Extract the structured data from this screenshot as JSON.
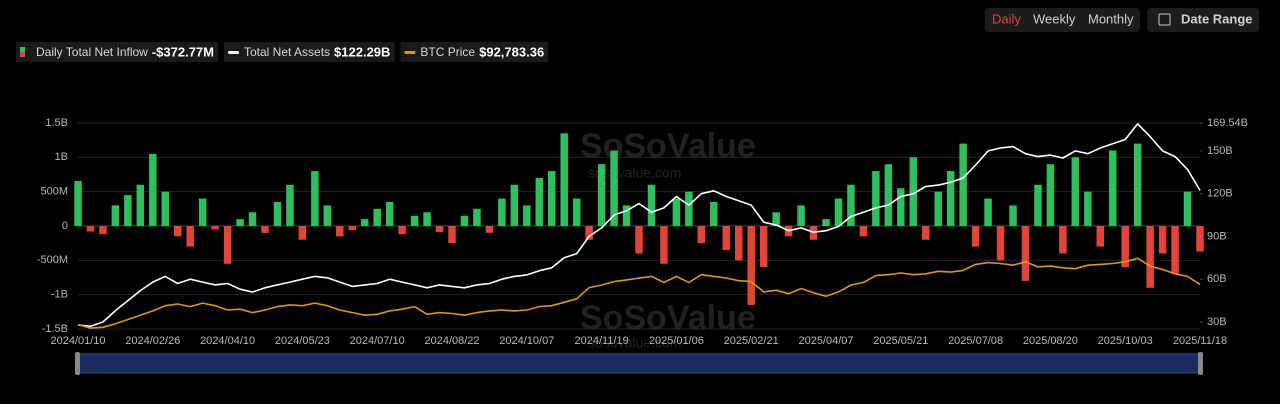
{
  "ui": {
    "tabs": [
      "Daily",
      "Weekly",
      "Monthly"
    ],
    "date_range": "Date Range",
    "watermark": "SoSoValue",
    "watermark_url": "sosovalue.com"
  },
  "chart_data": {
    "type": "bar-line",
    "categories": [
      "2024/01/10",
      null,
      null,
      null,
      null,
      null,
      "2024/02/26",
      null,
      null,
      null,
      null,
      null,
      "2024/04/10",
      null,
      null,
      null,
      null,
      null,
      "2024/05/23",
      null,
      null,
      null,
      null,
      null,
      "2024/07/10",
      null,
      null,
      null,
      null,
      null,
      "2024/08/22",
      null,
      null,
      null,
      null,
      null,
      "2024/10/07",
      null,
      null,
      null,
      null,
      null,
      "2024/11/19",
      null,
      null,
      null,
      null,
      null,
      "2025/01/06",
      null,
      null,
      null,
      null,
      null,
      "2025/02/21",
      null,
      null,
      null,
      null,
      null,
      "2025/04/07",
      null,
      null,
      null,
      null,
      null,
      "2025/05/21",
      null,
      null,
      null,
      null,
      null,
      "2025/07/08",
      null,
      null,
      null,
      null,
      null,
      "2025/08/20",
      null,
      null,
      null,
      null,
      null,
      "2025/10/03",
      null,
      null,
      null,
      null,
      null,
      "2025/11/18"
    ],
    "series": [
      {
        "name": "Daily Total Net Inflow",
        "legend_value": "-$372.77M",
        "color": "#2fbf5e",
        "negative_color": "#e2443a",
        "kind": "bar",
        "values": [
          655,
          -80,
          -120,
          300,
          450,
          600,
          1050,
          500,
          -150,
          -300,
          400,
          -50,
          -550,
          100,
          200,
          -100,
          350,
          600,
          -200,
          800,
          300,
          -150,
          -60,
          100,
          250,
          350,
          -120,
          150,
          200,
          -90,
          -250,
          150,
          250,
          -100,
          400,
          600,
          300,
          700,
          800,
          1350,
          400,
          -200,
          900,
          1100,
          300,
          -400,
          600,
          -550,
          400,
          500,
          -250,
          350,
          -350,
          -500,
          -1150,
          -600,
          200,
          -150,
          300,
          -200,
          100,
          400,
          600,
          -150,
          800,
          900,
          550,
          1000,
          -200,
          500,
          800,
          1200,
          -300,
          400,
          -500,
          300,
          -800,
          600,
          900,
          -400,
          1000,
          500,
          -300,
          1100,
          -600,
          1200,
          -900,
          -400,
          -700,
          500,
          -372.77
        ]
      },
      {
        "name": "Total Net Assets",
        "legend_value": "$122.29B",
        "color": "#ffffff",
        "kind": "line",
        "axis": "y2",
        "values": [
          28,
          27,
          30,
          38,
          45,
          52,
          58,
          62,
          57,
          60,
          58,
          56,
          57,
          53,
          51,
          54,
          56,
          58,
          60,
          62,
          61,
          58,
          55,
          56,
          57,
          60,
          58,
          56,
          54,
          56,
          55,
          54,
          56,
          57,
          60,
          62,
          63,
          66,
          68,
          75,
          78,
          90,
          96,
          105,
          108,
          113,
          107,
          110,
          118,
          112,
          120,
          122,
          118,
          115,
          112,
          100,
          98,
          94,
          96,
          93,
          94,
          97,
          104,
          107,
          110,
          112,
          118,
          120,
          125,
          126,
          128,
          131,
          140,
          150,
          152,
          153,
          148,
          146,
          147,
          145,
          150,
          148,
          152,
          155,
          158,
          169,
          160,
          150,
          146,
          137,
          122.29
        ]
      },
      {
        "name": "BTC Price",
        "legend_value": "$92,783.36",
        "color": "#d9971c",
        "kind": "line",
        "axis": "y3",
        "values": [
          46000,
          42000,
          43000,
          47000,
          52000,
          57000,
          62000,
          68000,
          70000,
          67000,
          71000,
          68000,
          63000,
          64000,
          60000,
          63000,
          67000,
          69000,
          68000,
          71000,
          68000,
          63000,
          60000,
          57000,
          58000,
          62000,
          64000,
          67000,
          58000,
          60000,
          59000,
          57000,
          60000,
          62000,
          63000,
          62000,
          63000,
          67000,
          68000,
          72000,
          76000,
          89000,
          92000,
          96000,
          98000,
          100000,
          102000,
          95000,
          102000,
          95000,
          104000,
          102000,
          100000,
          97000,
          96000,
          84000,
          86000,
          82000,
          88000,
          83000,
          79000,
          84000,
          92000,
          95000,
          103000,
          104000,
          106000,
          104000,
          105000,
          108000,
          107000,
          109000,
          116000,
          118000,
          117000,
          115000,
          119000,
          113000,
          114000,
          112000,
          111000,
          115000,
          116000,
          117000,
          119000,
          123000,
          114000,
          110000,
          105000,
          102000,
          92783.36
        ]
      }
    ],
    "ylim": [
      -1500,
      1500
    ],
    "yticks": [
      {
        "value": 1500,
        "label": "1.5B"
      },
      {
        "value": 1000,
        "label": "1B"
      },
      {
        "value": 500,
        "label": "500M"
      },
      0,
      {
        "value": -500,
        "label": "-500M"
      },
      {
        "value": -1000,
        "label": "-1B"
      },
      {
        "value": -1500,
        "label": "-1.5B"
      }
    ],
    "y2lim": [
      25.1,
      169.54
    ],
    "y2ticks": [
      {
        "value": 169.54,
        "label": "169.54B"
      },
      {
        "value": 150,
        "label": "150B"
      },
      {
        "value": 120,
        "label": "120B"
      },
      {
        "value": 90,
        "label": "90B"
      },
      {
        "value": 60,
        "label": "60B"
      },
      {
        "value": 30,
        "label": "30B"
      }
    ],
    "y3lim": [
      41000,
      280000
    ],
    "grid": true
  }
}
